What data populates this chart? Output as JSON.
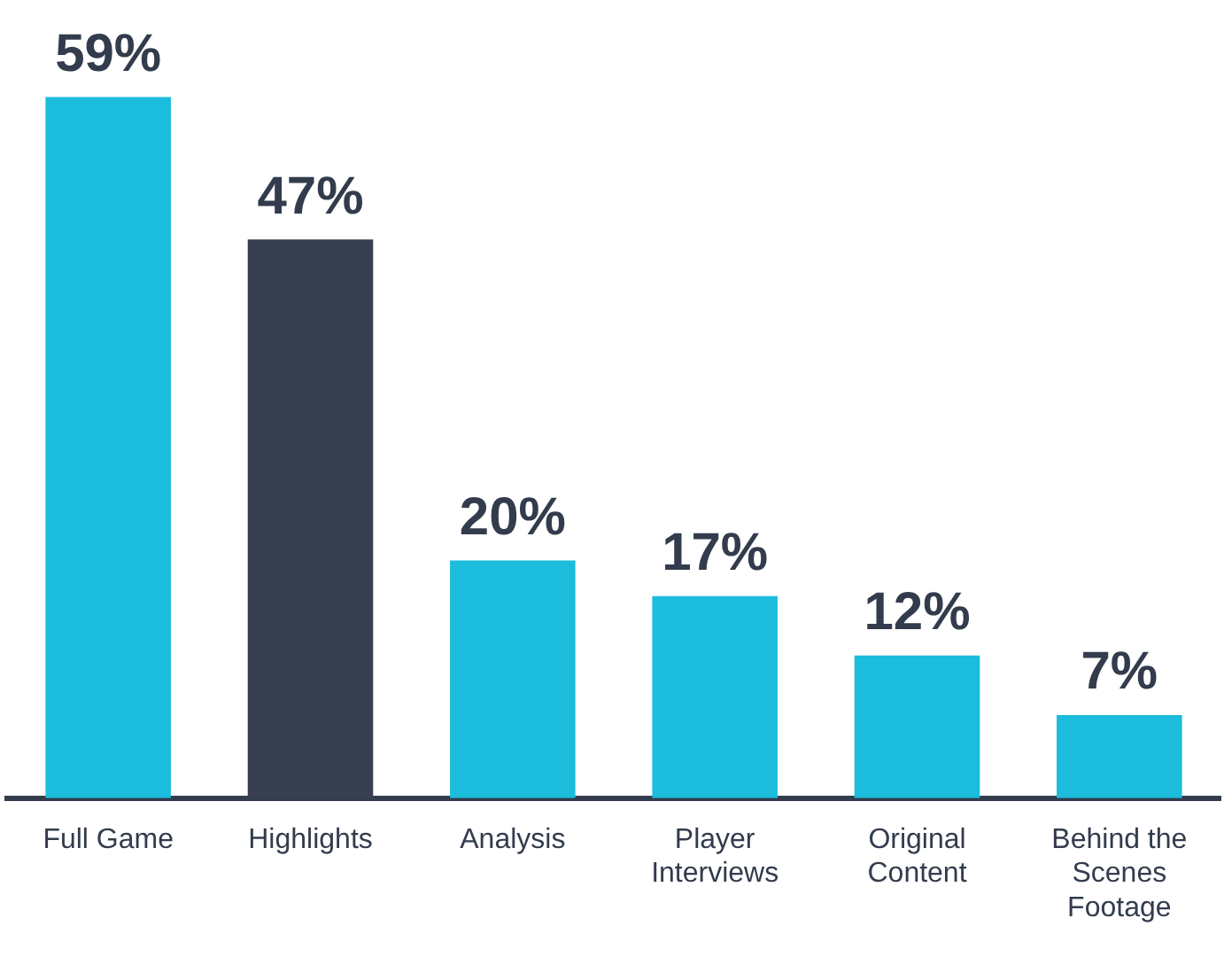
{
  "chart_data": {
    "type": "bar",
    "categories": [
      "Full Game",
      "Highlights",
      "Analysis",
      "Player Interviews",
      "Original Content",
      "Behind the Scenes Footage"
    ],
    "values": [
      59,
      47,
      20,
      17,
      12,
      7
    ],
    "value_labels": [
      "59%",
      "47%",
      "20%",
      "17%",
      "12%",
      "7%"
    ],
    "colors": [
      "#1bbcdc",
      "#383f50",
      "#1bbcdc",
      "#1bbcdc",
      "#1bbcdc",
      "#1bbcdc"
    ],
    "grid": false,
    "legend": false
  }
}
